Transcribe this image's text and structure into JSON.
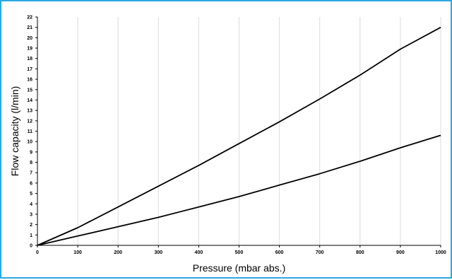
{
  "chart_data": {
    "type": "line",
    "title": "",
    "xlabel": "Pressure (mbar abs.)",
    "ylabel": "Flow capacity (l/min)",
    "xlim": [
      0,
      1000
    ],
    "ylim": [
      0,
      22
    ],
    "x_ticks": [
      0,
      100,
      200,
      300,
      400,
      500,
      600,
      700,
      800,
      900,
      1000
    ],
    "y_ticks": [
      0,
      1,
      2,
      3,
      4,
      5,
      6,
      7,
      8,
      9,
      10,
      11,
      12,
      13,
      14,
      15,
      16,
      17,
      18,
      19,
      20,
      21,
      22
    ],
    "grid": "vertical",
    "series": [
      {
        "color": "#000000",
        "x": [
          0,
          100,
          200,
          300,
          400,
          500,
          600,
          700,
          800,
          900,
          1000
        ],
        "values": [
          0,
          1.7,
          3.7,
          5.7,
          7.7,
          9.8,
          11.9,
          14.1,
          16.4,
          18.9,
          21.0
        ]
      },
      {
        "color": "#000000",
        "x": [
          0,
          100,
          200,
          300,
          400,
          500,
          600,
          700,
          800,
          900,
          1000
        ],
        "values": [
          0,
          0.9,
          1.8,
          2.7,
          3.7,
          4.7,
          5.8,
          6.9,
          8.1,
          9.4,
          10.6
        ]
      }
    ]
  },
  "colors": {
    "frame_border": "#29a9e1",
    "grid": "#dcdcdc",
    "line": "#000000"
  }
}
